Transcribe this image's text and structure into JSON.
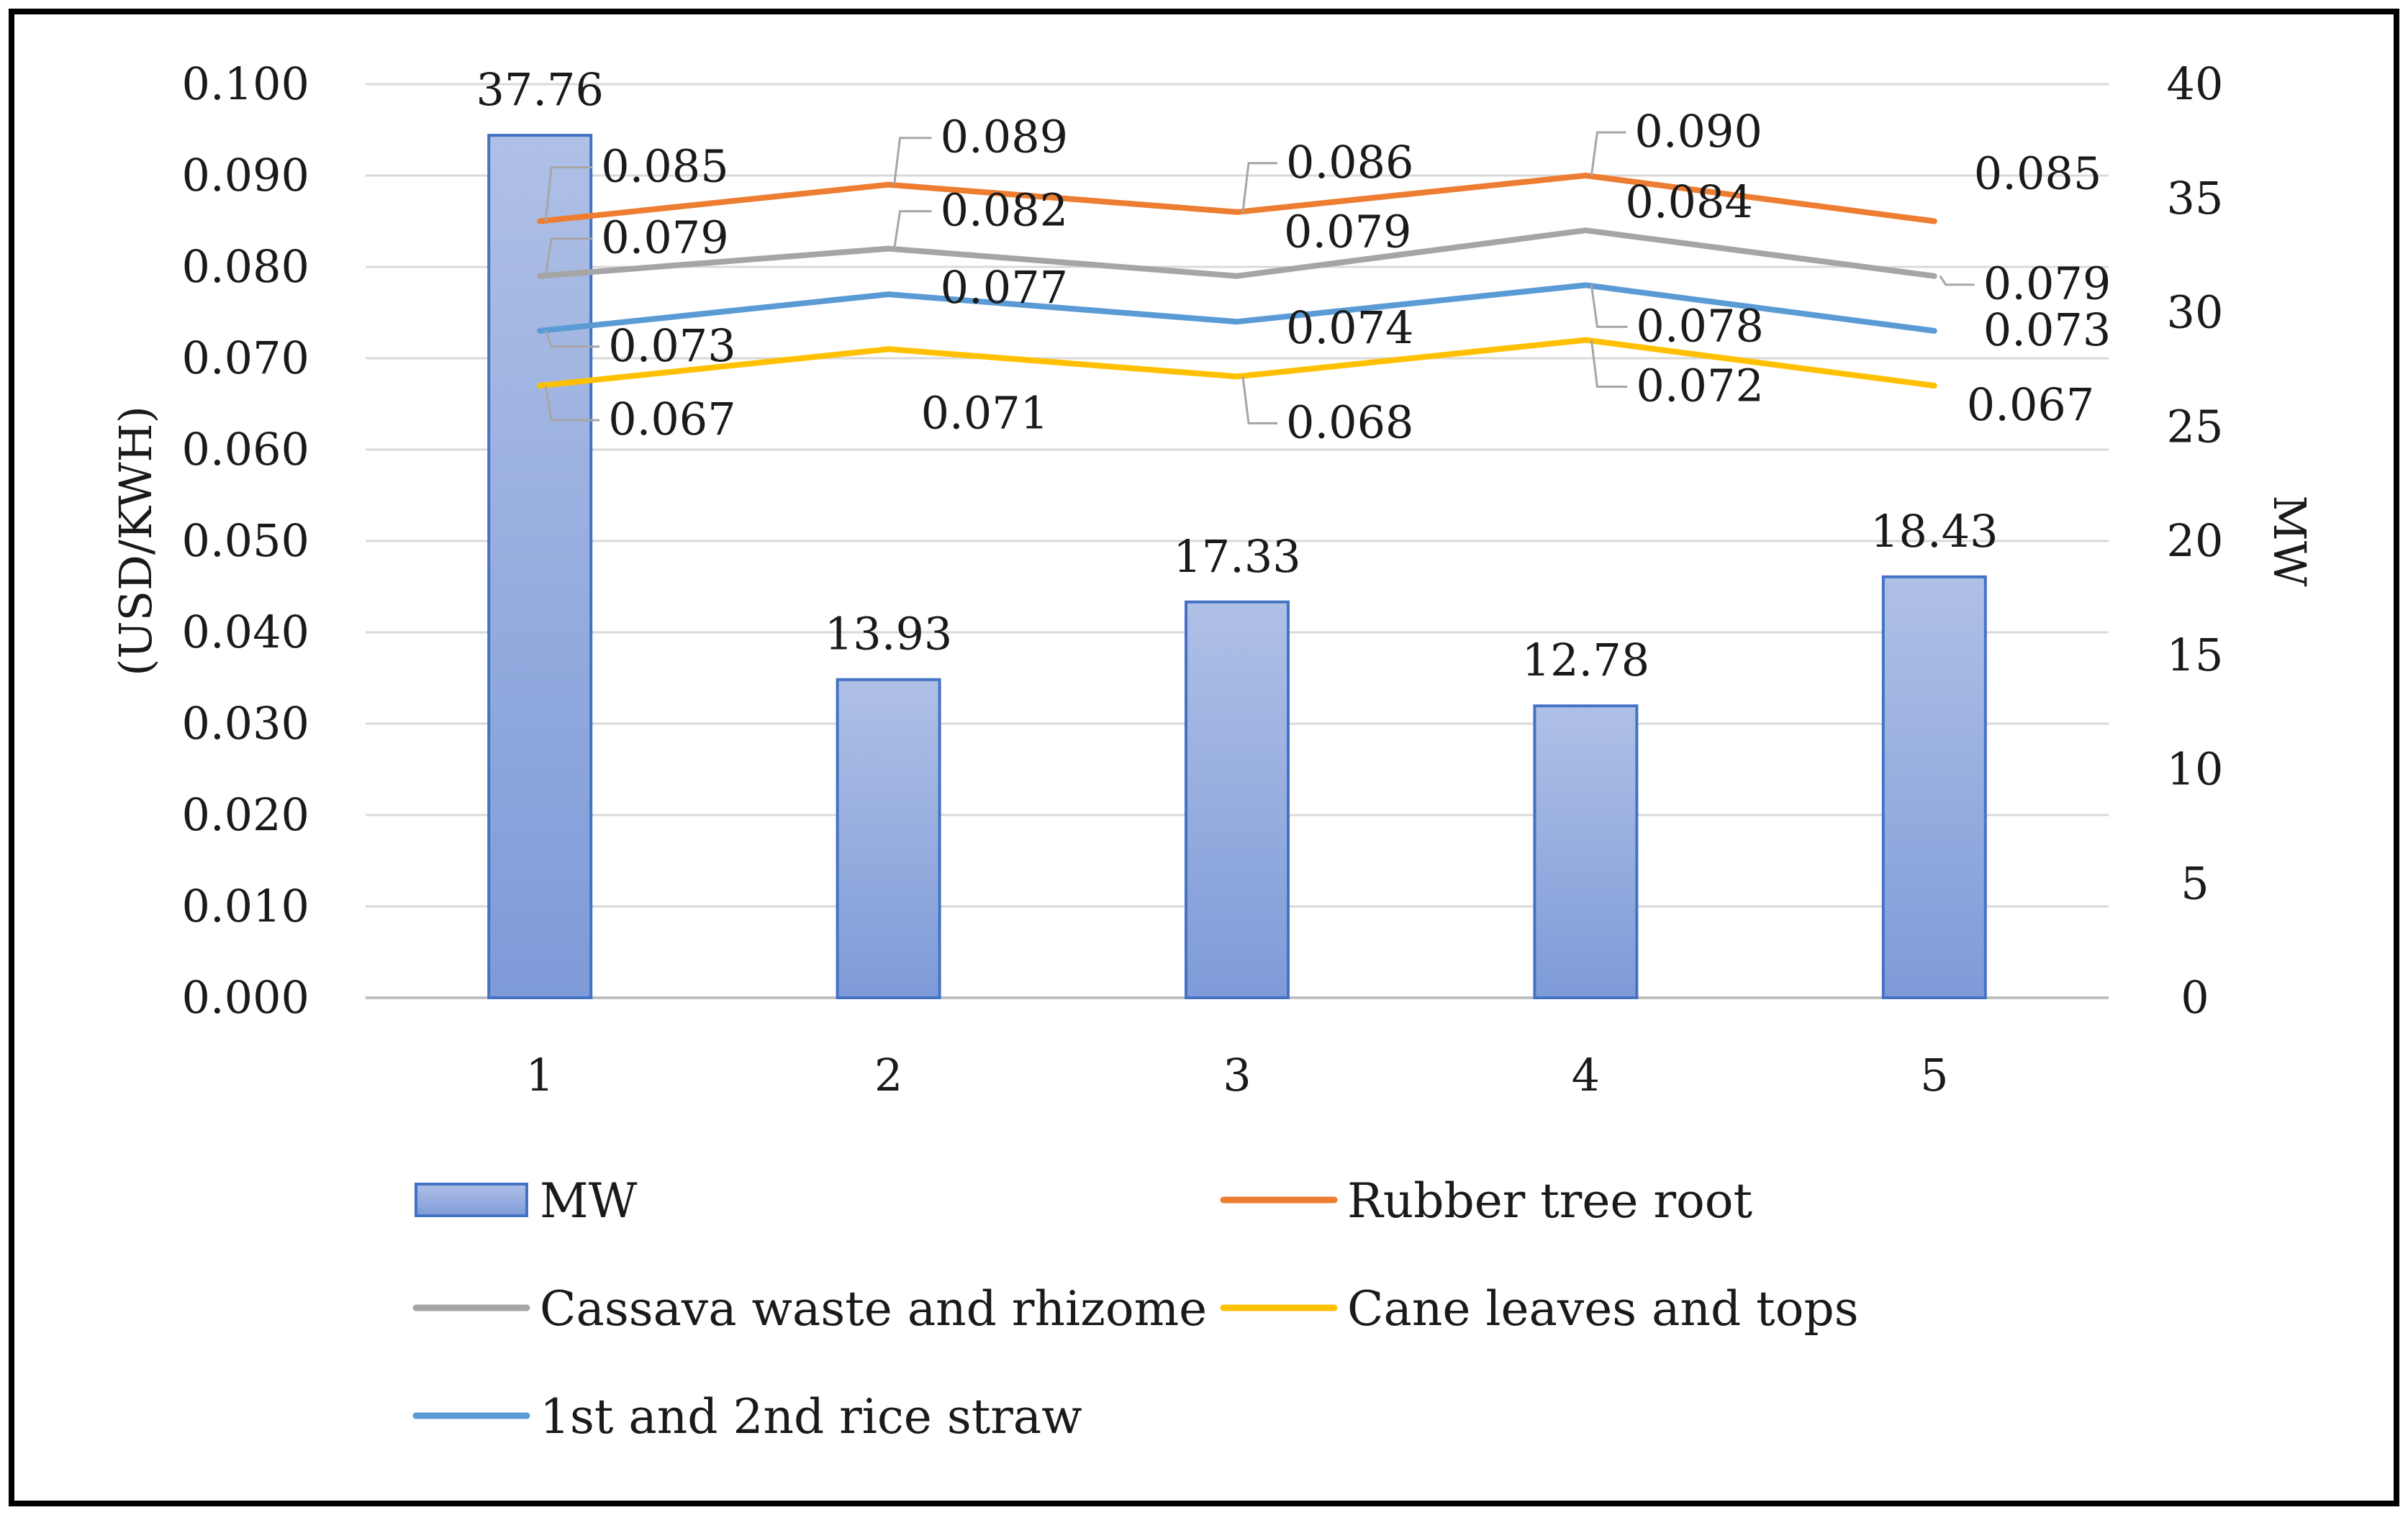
{
  "chart_data": {
    "type": "bar+line",
    "categories": [
      "1",
      "2",
      "3",
      "4",
      "5"
    ],
    "bar_series": {
      "name": "MW",
      "values": [
        37.76,
        13.93,
        17.33,
        12.78,
        18.43
      ],
      "labels": [
        "37.76",
        "13.93",
        "17.33",
        "12.78",
        "18.43"
      ],
      "axis": "right",
      "color": "#8FA8DC",
      "edge_color": "#4472C4"
    },
    "line_series": [
      {
        "name": "Rubber tree root",
        "color": "#ED7D31",
        "values": [
          0.085,
          0.089,
          0.086,
          0.09,
          0.085
        ],
        "labels": [
          "0.085",
          "0.089",
          "0.086",
          "0.090",
          "0.085"
        ]
      },
      {
        "name": "Cassava waste and rhizome",
        "color": "#A5A5A5",
        "values": [
          0.079,
          0.082,
          0.079,
          0.084,
          0.079
        ],
        "labels": [
          "0.079",
          "0.082",
          "0.079",
          "0.084",
          "0.079"
        ]
      },
      {
        "name": "1st and 2nd rice straw",
        "color": "#5B9BD5",
        "values": [
          0.073,
          0.077,
          0.074,
          0.078,
          0.073
        ],
        "labels": [
          "0.073",
          "0.077",
          "0.074",
          "0.078",
          "0.073"
        ]
      },
      {
        "name": "Cane leaves and tops",
        "color": "#FFC000",
        "values": [
          0.067,
          0.071,
          0.068,
          0.072,
          0.067
        ],
        "labels": [
          "0.067",
          "0.071",
          "0.068",
          "0.072",
          "0.067"
        ]
      }
    ],
    "left_axis": {
      "title": "(USD/KWH)",
      "range": [
        0,
        0.1
      ],
      "ticks": [
        "0.000",
        "0.010",
        "0.020",
        "0.030",
        "0.040",
        "0.050",
        "0.060",
        "0.070",
        "0.080",
        "0.090",
        "0.100"
      ]
    },
    "right_axis": {
      "title": "MW",
      "range": [
        0,
        40
      ],
      "ticks": [
        "0",
        "5",
        "10",
        "15",
        "20",
        "25",
        "30",
        "35",
        "40"
      ]
    },
    "grid": true,
    "legend_position": "bottom",
    "legend": [
      {
        "key": "bar",
        "label": "MW"
      },
      {
        "key": "line0",
        "label": "Rubber tree root"
      },
      {
        "key": "line1",
        "label": "Cassava waste and rhizome"
      },
      {
        "key": "line3",
        "label": "Cane leaves and tops"
      },
      {
        "key": "line2",
        "label": "1st and 2nd rice straw"
      }
    ]
  }
}
